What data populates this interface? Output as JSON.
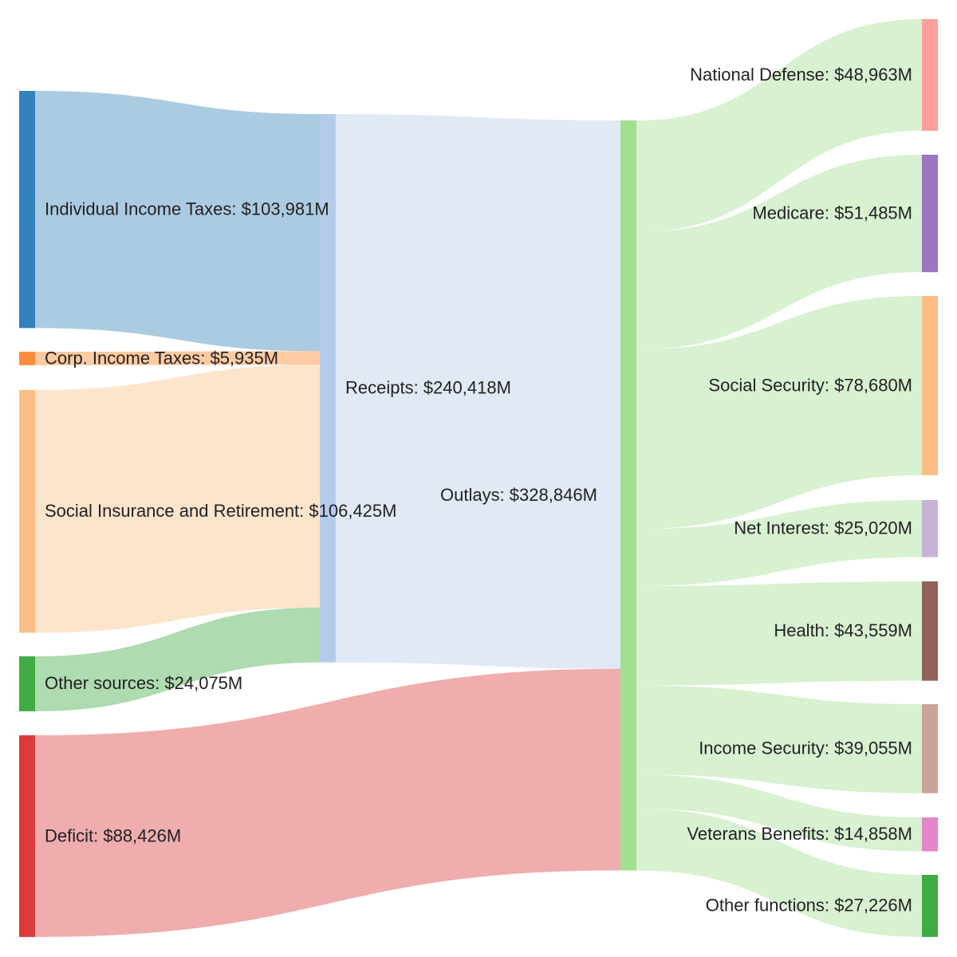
{
  "chart_data": {
    "type": "sankey",
    "units": "$M",
    "nodes": [
      {
        "id": "individual",
        "label": "Individual Income Taxes: $103,981M",
        "value": 103981,
        "color": "#3182bd",
        "link_color": "#a6c8df"
      },
      {
        "id": "corp",
        "label": "Corp. Income Taxes: $5,935M",
        "value": 5935,
        "color": "#fd8d3c",
        "link_color": "#fec79c"
      },
      {
        "id": "social_ins",
        "label": "Social Insurance and Retirement: $106,425M",
        "value": 106425,
        "color": "#fdbe85",
        "link_color": "#fde3c9"
      },
      {
        "id": "other_sources",
        "label": "Other sources: $24,075M",
        "value": 24075,
        "color": "#41ab43",
        "link_color": "#aad9ab"
      },
      {
        "id": "deficit",
        "label": "Deficit: $88,426M",
        "value": 88426,
        "color": "#de3a3c",
        "link_color": "#eea9a9"
      },
      {
        "id": "receipts",
        "label": "Receipts: $240,418M",
        "value": 240418,
        "color": "#b5cbeb",
        "link_color": "#dfe8f5"
      },
      {
        "id": "outlays",
        "label": "Outlays: $328,846M",
        "value": 328846,
        "color": "#a1e08f",
        "link_color": "#d5f0cf"
      },
      {
        "id": "defense",
        "label": "National Defense: $48,963M",
        "value": 48963,
        "color": "#fe9f9b"
      },
      {
        "id": "medicare",
        "label": "Medicare: $51,485M",
        "value": 51485,
        "color": "#9d76c2"
      },
      {
        "id": "social_security",
        "label": "Social Security: $78,680M",
        "value": 78680,
        "color": "#fdbe85"
      },
      {
        "id": "net_interest",
        "label": "Net Interest: $25,020M",
        "value": 25020,
        "color": "#c7b3d6"
      },
      {
        "id": "health",
        "label": "Health: $43,559M",
        "value": 43559,
        "color": "#936159"
      },
      {
        "id": "income_security",
        "label": "Income Security: $39,055M",
        "value": 39055,
        "color": "#c7a59b"
      },
      {
        "id": "veterans",
        "label": "Veterans Benefits: $14,858M",
        "value": 14858,
        "color": "#e485cb"
      },
      {
        "id": "other_functions",
        "label": "Other functions: $27,226M",
        "value": 27226,
        "color": "#41ab43"
      }
    ],
    "links": [
      {
        "source": "individual",
        "target": "receipts",
        "value": 103981
      },
      {
        "source": "corp",
        "target": "receipts",
        "value": 5935
      },
      {
        "source": "social_ins",
        "target": "receipts",
        "value": 106425
      },
      {
        "source": "other_sources",
        "target": "receipts",
        "value": 24075
      },
      {
        "source": "receipts",
        "target": "outlays",
        "value": 240418
      },
      {
        "source": "deficit",
        "target": "outlays",
        "value": 88426
      },
      {
        "source": "outlays",
        "target": "defense",
        "value": 48963
      },
      {
        "source": "outlays",
        "target": "medicare",
        "value": 51485
      },
      {
        "source": "outlays",
        "target": "social_security",
        "value": 78680
      },
      {
        "source": "outlays",
        "target": "net_interest",
        "value": 25020
      },
      {
        "source": "outlays",
        "target": "health",
        "value": 43559
      },
      {
        "source": "outlays",
        "target": "income_security",
        "value": 39055
      },
      {
        "source": "outlays",
        "target": "veterans",
        "value": 14858
      },
      {
        "source": "outlays",
        "target": "other_functions",
        "value": 27226
      }
    ]
  }
}
